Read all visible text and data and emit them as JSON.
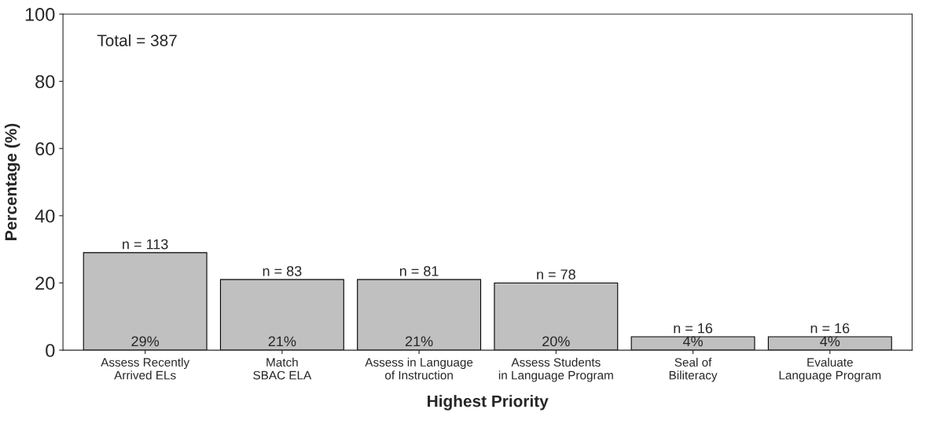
{
  "chart_data": {
    "type": "bar",
    "xlabel": "Highest Priority",
    "ylabel": "Percentage (%)",
    "categories": [
      "Assess Recently\nArrived ELs",
      "Match\nSBAC ELA",
      "Assess in Language\nof Instruction",
      "Assess Students\nin Language Program",
      "Seal of\nBiliteracy",
      "Evaluate\nLanguage Program"
    ],
    "values": [
      29,
      21,
      21,
      20,
      4,
      4
    ],
    "value_labels": [
      "29%",
      "21%",
      "21%",
      "20%",
      "4%",
      "4%"
    ],
    "color": "#c0c0c0",
    "ylim": [
      0,
      100
    ],
    "yticks": [
      0,
      20,
      40,
      60,
      80,
      100
    ],
    "grid": false,
    "annotations": [
      "Total = 387",
      {
        "text": "n = 113",
        "x": "Assess Recently\nArrived ELs",
        "y": 29
      },
      {
        "text": "n = 83",
        "x": "Match\nSBAC ELA",
        "y": 21
      },
      {
        "text": "n = 81",
        "x": "Assess in Language\nof Instruction",
        "y": 21
      },
      {
        "text": "n = 78",
        "x": "Assess Students\nin Language Program",
        "y": 20
      },
      {
        "text": "n = 16",
        "x": "Seal of\nBiliteracy",
        "y": 4
      },
      {
        "text": "n = 16",
        "x": "Evaluate\nLanguage Program",
        "y": 4
      }
    ]
  }
}
